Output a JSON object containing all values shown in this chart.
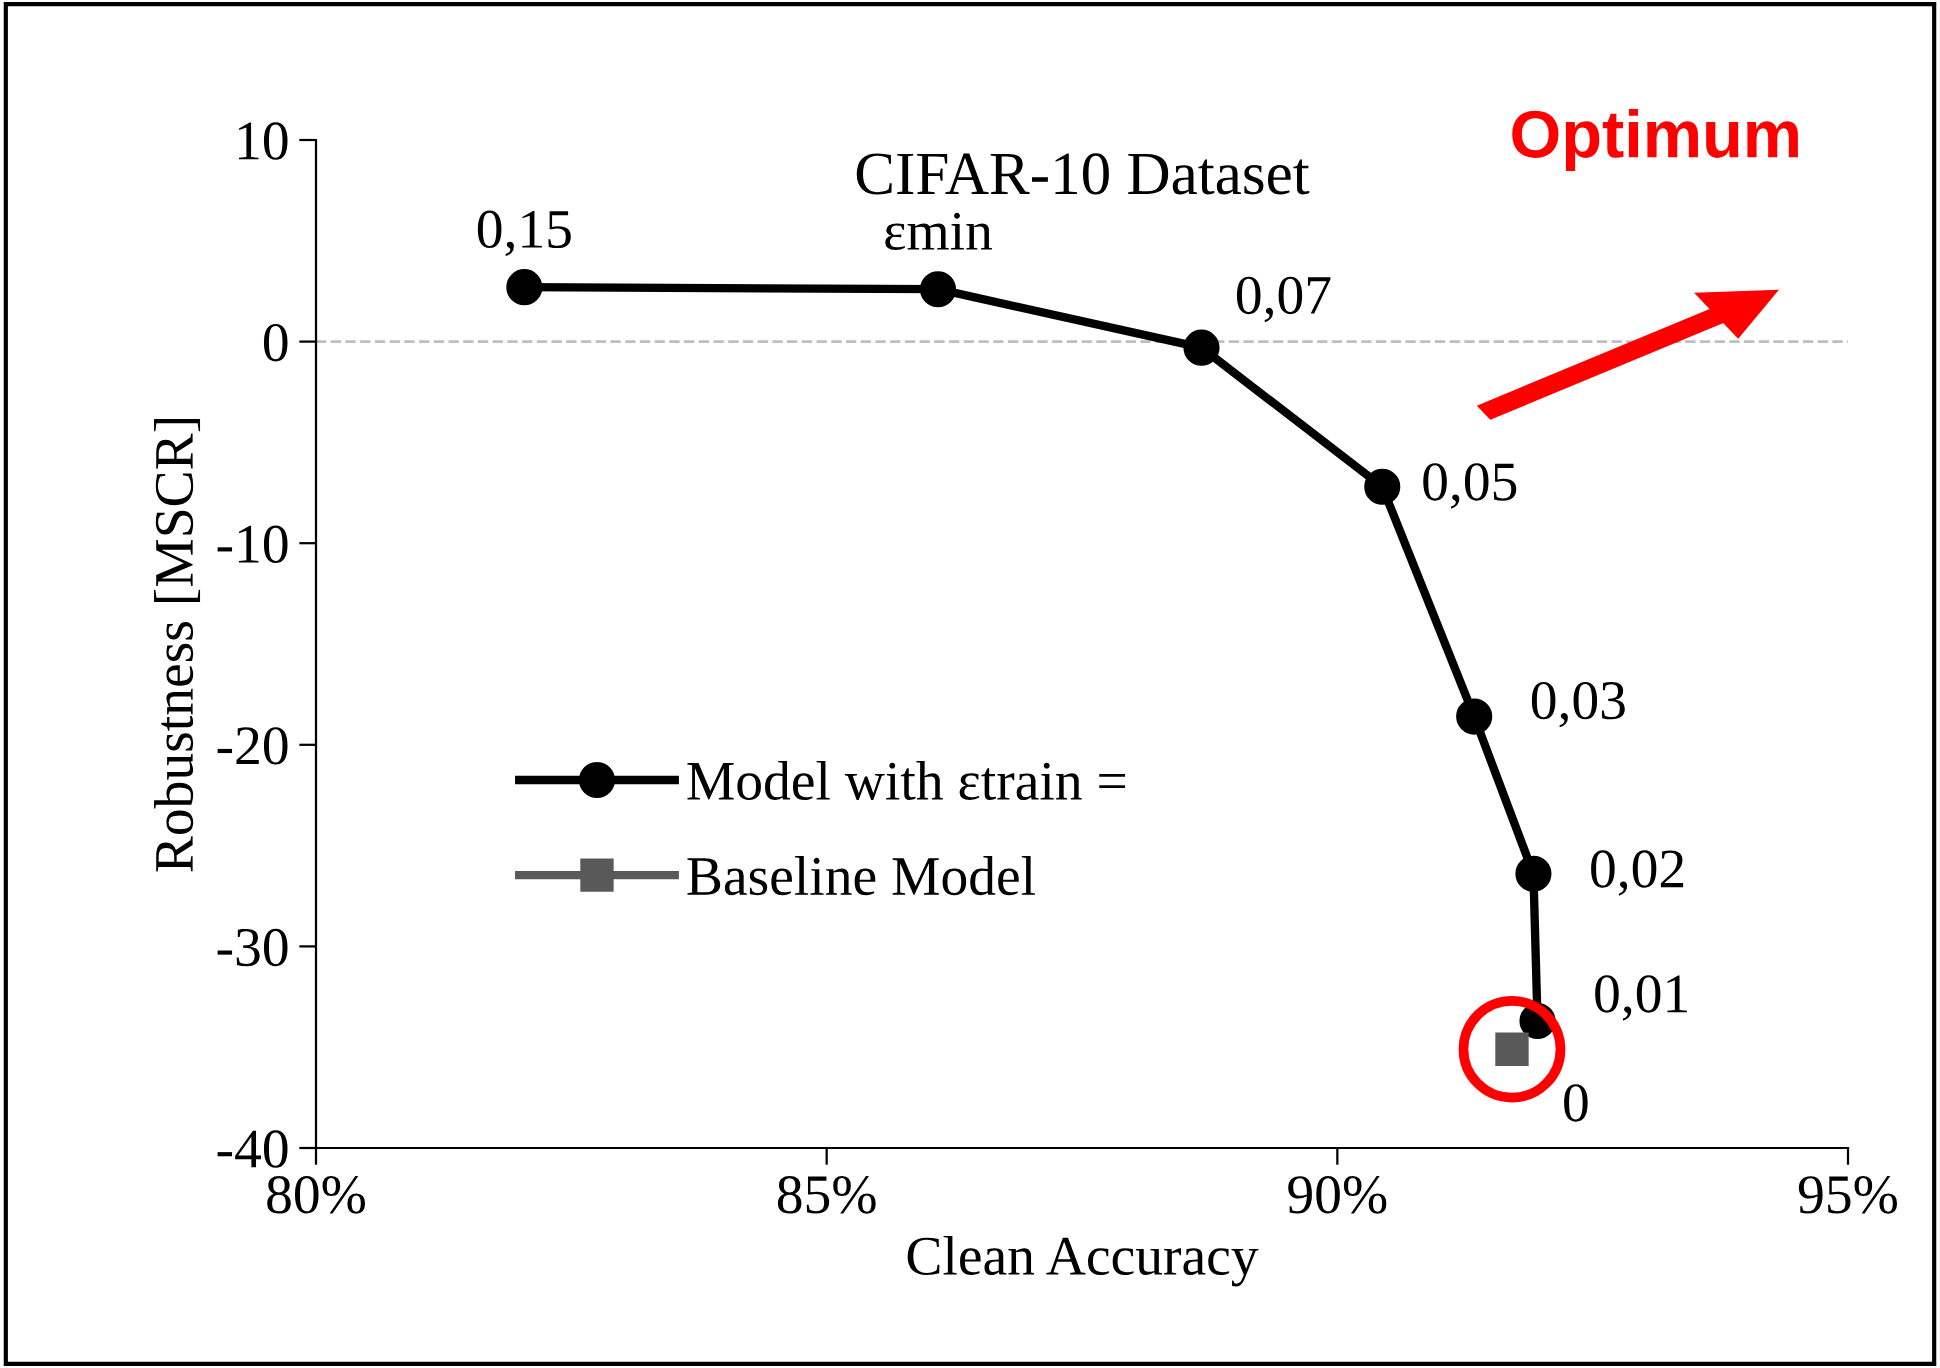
{
  "chart_data": {
    "type": "line",
    "title": "CIFAR-10 Dataset",
    "xlabel": "Clean Accuracy",
    "ylabel": "Robustness [MSCR]",
    "x": [
      82.04,
      86.09,
      88.67,
      90.44,
      91.34,
      91.92,
      91.96
    ],
    "series": [
      {
        "name": "Model with εtrain =",
        "color": "#000000",
        "marker": "circle",
        "values": [
          2.7,
          2.6,
          -0.3,
          -7.2,
          -18.6,
          -26.4,
          -33.7
        ]
      },
      {
        "name": "Baseline Model",
        "color": "#595959",
        "marker": "square",
        "x": [
          91.71
        ],
        "values": [
          -35.1
        ]
      }
    ],
    "xlim": [
      80,
      95
    ],
    "xticks": [
      {
        "value": 80,
        "label": "80%"
      },
      {
        "value": 85,
        "label": "85%"
      },
      {
        "value": 90,
        "label": "90%"
      },
      {
        "value": 95,
        "label": "95%"
      }
    ],
    "ylim": [
      -40,
      10
    ],
    "yticks": [
      -40,
      -30,
      -20,
      -10,
      0,
      10
    ],
    "ref_lines": [
      {
        "axis": "y",
        "value": 0,
        "color": "#bfbfbf",
        "line_style": "dashed"
      }
    ],
    "annotations": [
      {
        "text": "0,15",
        "x": 82.04,
        "y": 2.7
      },
      {
        "text": "εmin",
        "x": 86.09,
        "y": 2.6
      },
      {
        "text": "0,07",
        "x": 88.67,
        "y": -0.3
      },
      {
        "text": "0,05",
        "x": 90.44,
        "y": -7.2
      },
      {
        "text": "0,03",
        "x": 91.34,
        "y": -18.6
      },
      {
        "text": "0,02",
        "x": 91.92,
        "y": -26.4
      },
      {
        "text": "0,01",
        "x": 91.96,
        "y": -33.7
      },
      {
        "text": "0",
        "x": 91.71,
        "y": -35.1
      },
      "Optimum"
    ],
    "grid": false,
    "legend": "bottom left",
    "line_style": "solid"
  }
}
